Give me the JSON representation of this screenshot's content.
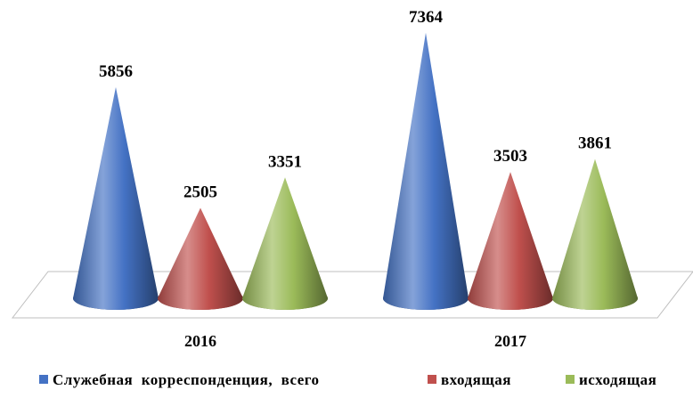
{
  "chart_data": {
    "type": "bar",
    "style": "3d-cone",
    "title": "",
    "categories": [
      "2016",
      "2017"
    ],
    "series": [
      {
        "name": "Служебная  корреспонденция,  всего",
        "color": "#4472C4",
        "values": [
          5856,
          7364
        ]
      },
      {
        "name": "входящая",
        "color": "#C0504D",
        "values": [
          2505,
          3503
        ]
      },
      {
        "name": "исходящая",
        "color": "#9BBB59",
        "values": [
          3351,
          3861
        ]
      }
    ],
    "ylim": [
      0,
      8000
    ],
    "grid": false,
    "legend": "bottom",
    "data_labels": true
  }
}
